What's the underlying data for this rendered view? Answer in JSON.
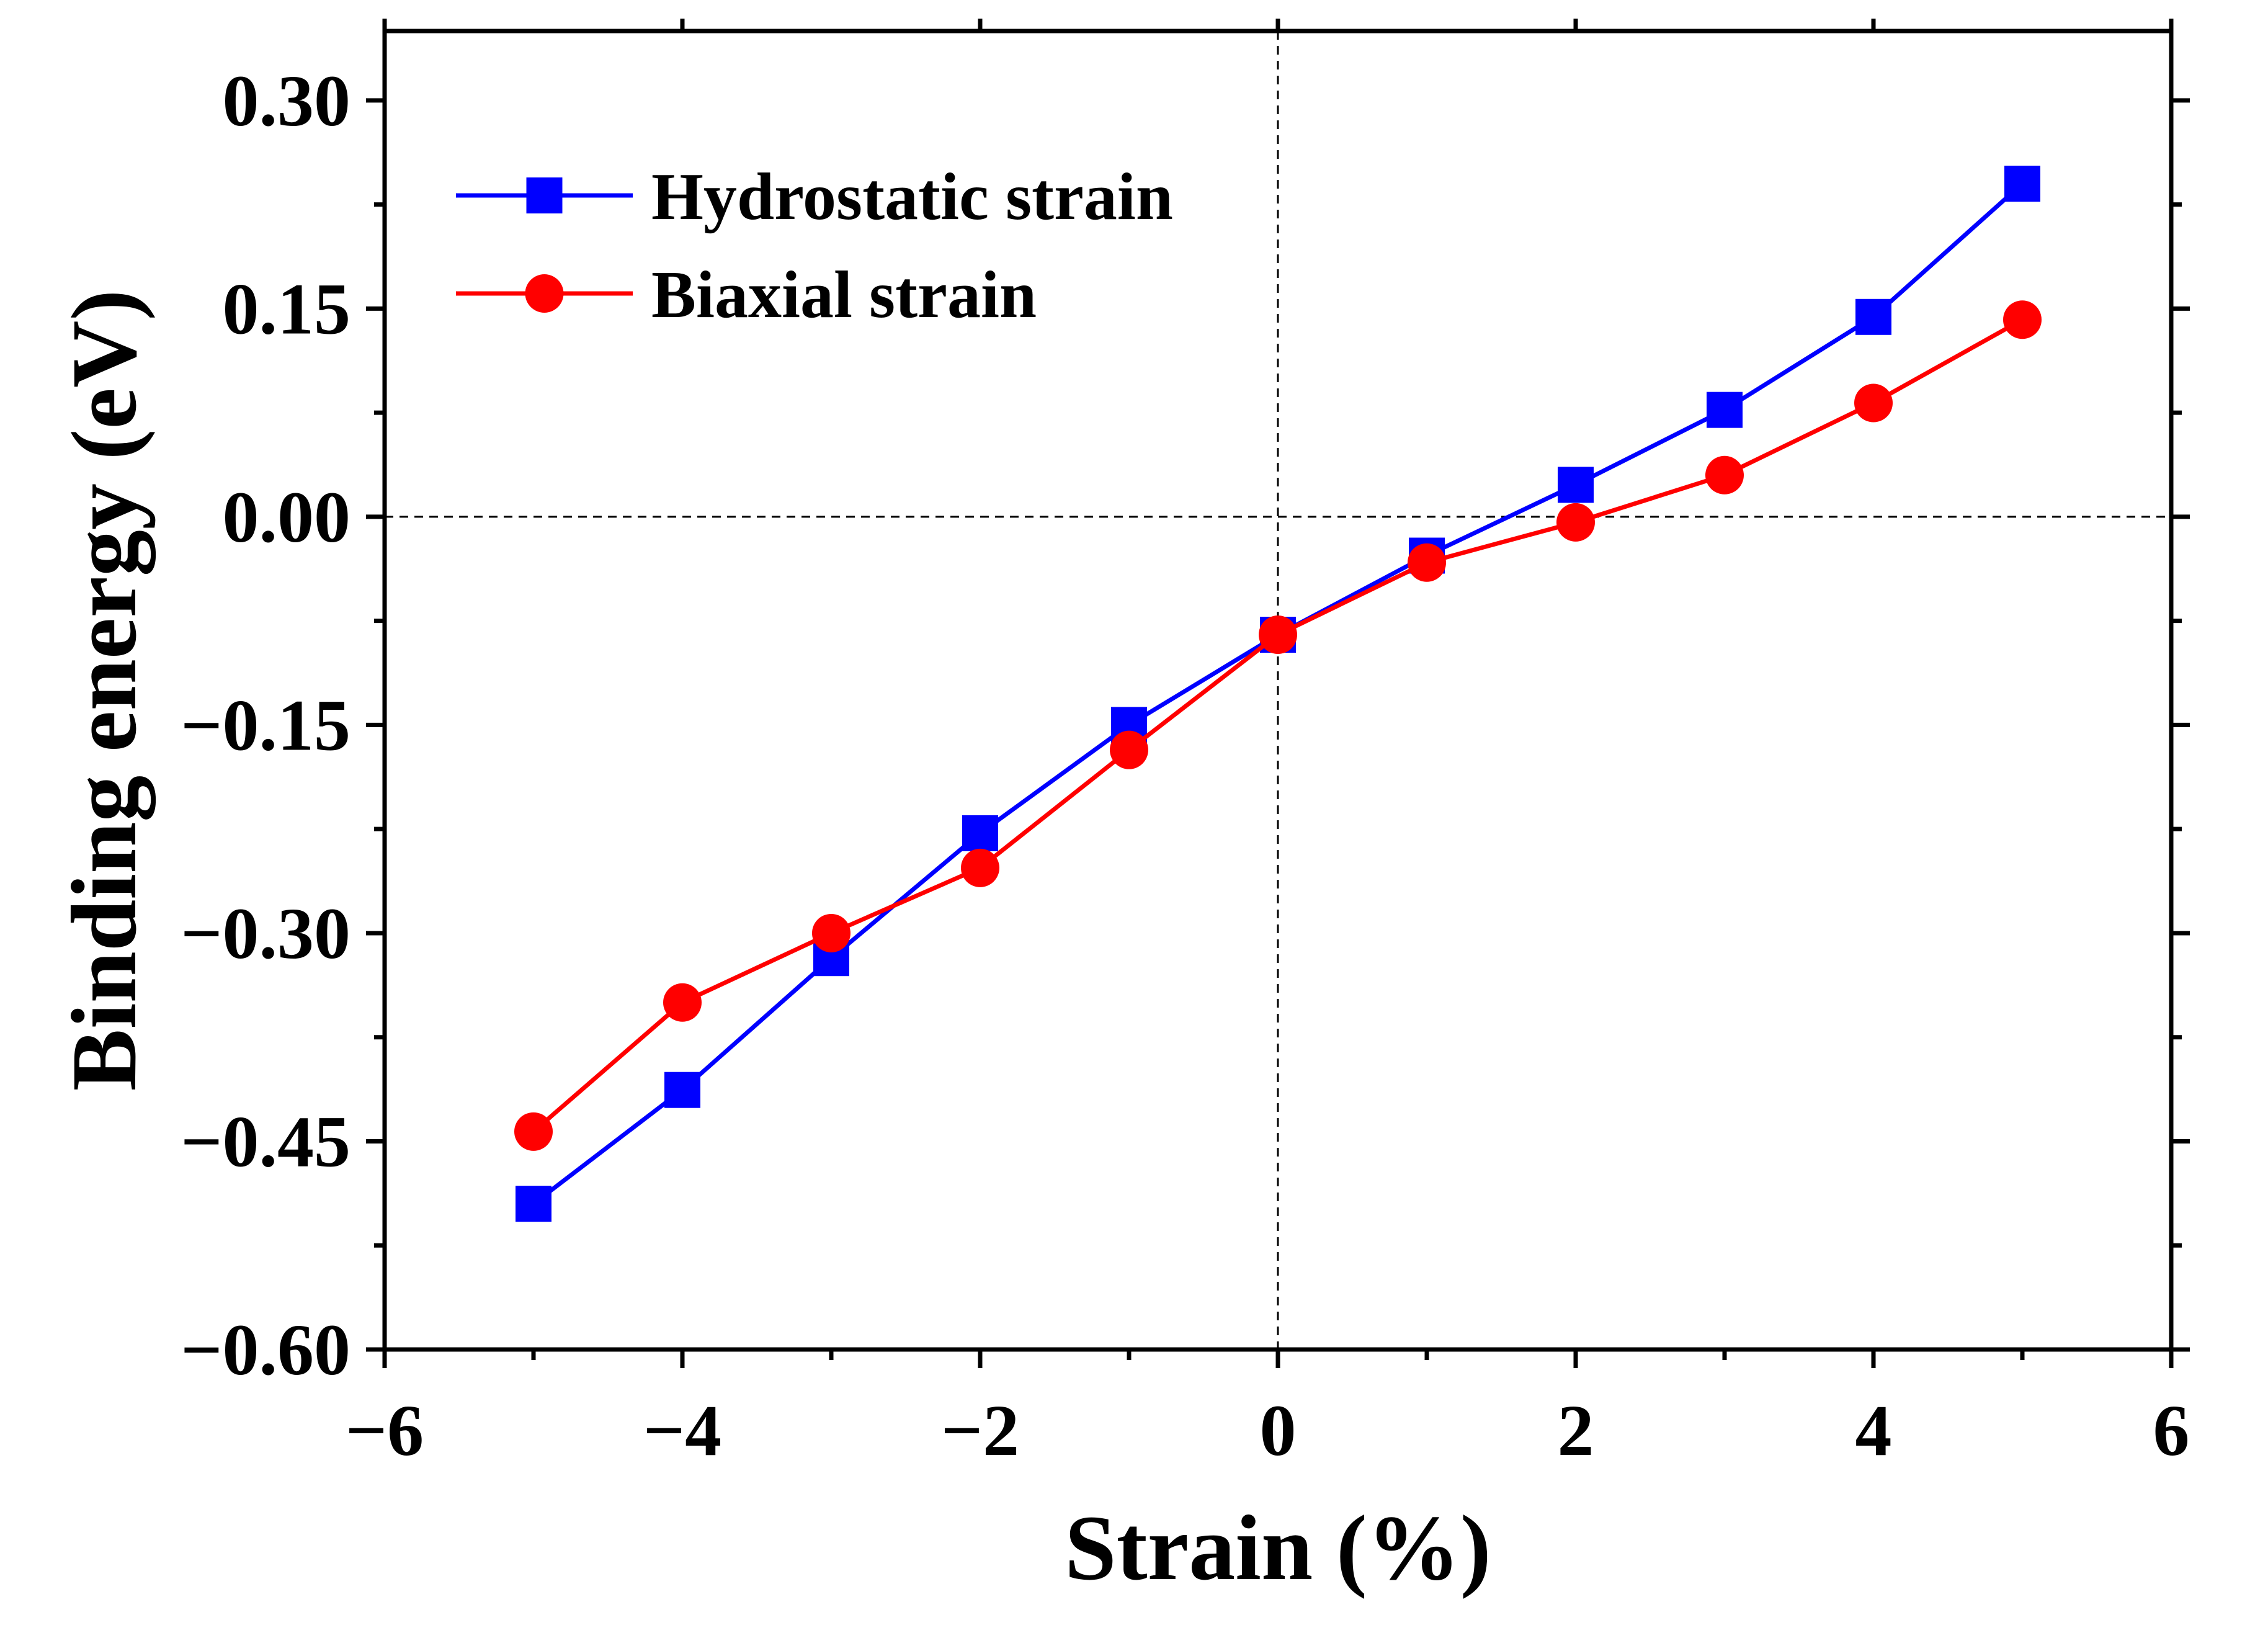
{
  "chart_data": {
    "type": "line",
    "title": "",
    "xlabel": "Strain (%)",
    "ylabel": "Binding energy (eV)",
    "xlim": [
      -6,
      6
    ],
    "ylim": [
      -0.6,
      0.35
    ],
    "xticks": [
      -6,
      -4,
      -2,
      0,
      2,
      4,
      6
    ],
    "xtick_labels": [
      "−6",
      "−4",
      "−2",
      "0",
      "2",
      "4",
      "6"
    ],
    "yticks": [
      -0.6,
      -0.45,
      -0.3,
      -0.15,
      0.0,
      0.15,
      0.3
    ],
    "ytick_labels": [
      "−0.60",
      "−0.45",
      "−0.30",
      "−0.15",
      "0.00",
      "0.15",
      "0.30"
    ],
    "legend_position": "top-left",
    "x": [
      -5,
      -4,
      -3,
      -2,
      -1,
      0,
      1,
      2,
      3,
      4,
      5
    ],
    "series": [
      {
        "name": "Hydrostatic strain",
        "color": "#0000ff",
        "marker": "square",
        "values": [
          -0.495,
          -0.413,
          -0.318,
          -0.228,
          -0.15,
          -0.085,
          -0.028,
          0.023,
          0.077,
          0.144,
          0.24
        ]
      },
      {
        "name": "Biaxial strain",
        "color": "#ff0000",
        "marker": "circle",
        "values": [
          -0.443,
          -0.35,
          -0.3,
          -0.253,
          -0.168,
          -0.085,
          -0.033,
          -0.004,
          0.03,
          0.082,
          0.142
        ]
      }
    ],
    "reference_lines": [
      {
        "axis": "x",
        "value": 0
      },
      {
        "axis": "y",
        "value": 0
      }
    ]
  }
}
